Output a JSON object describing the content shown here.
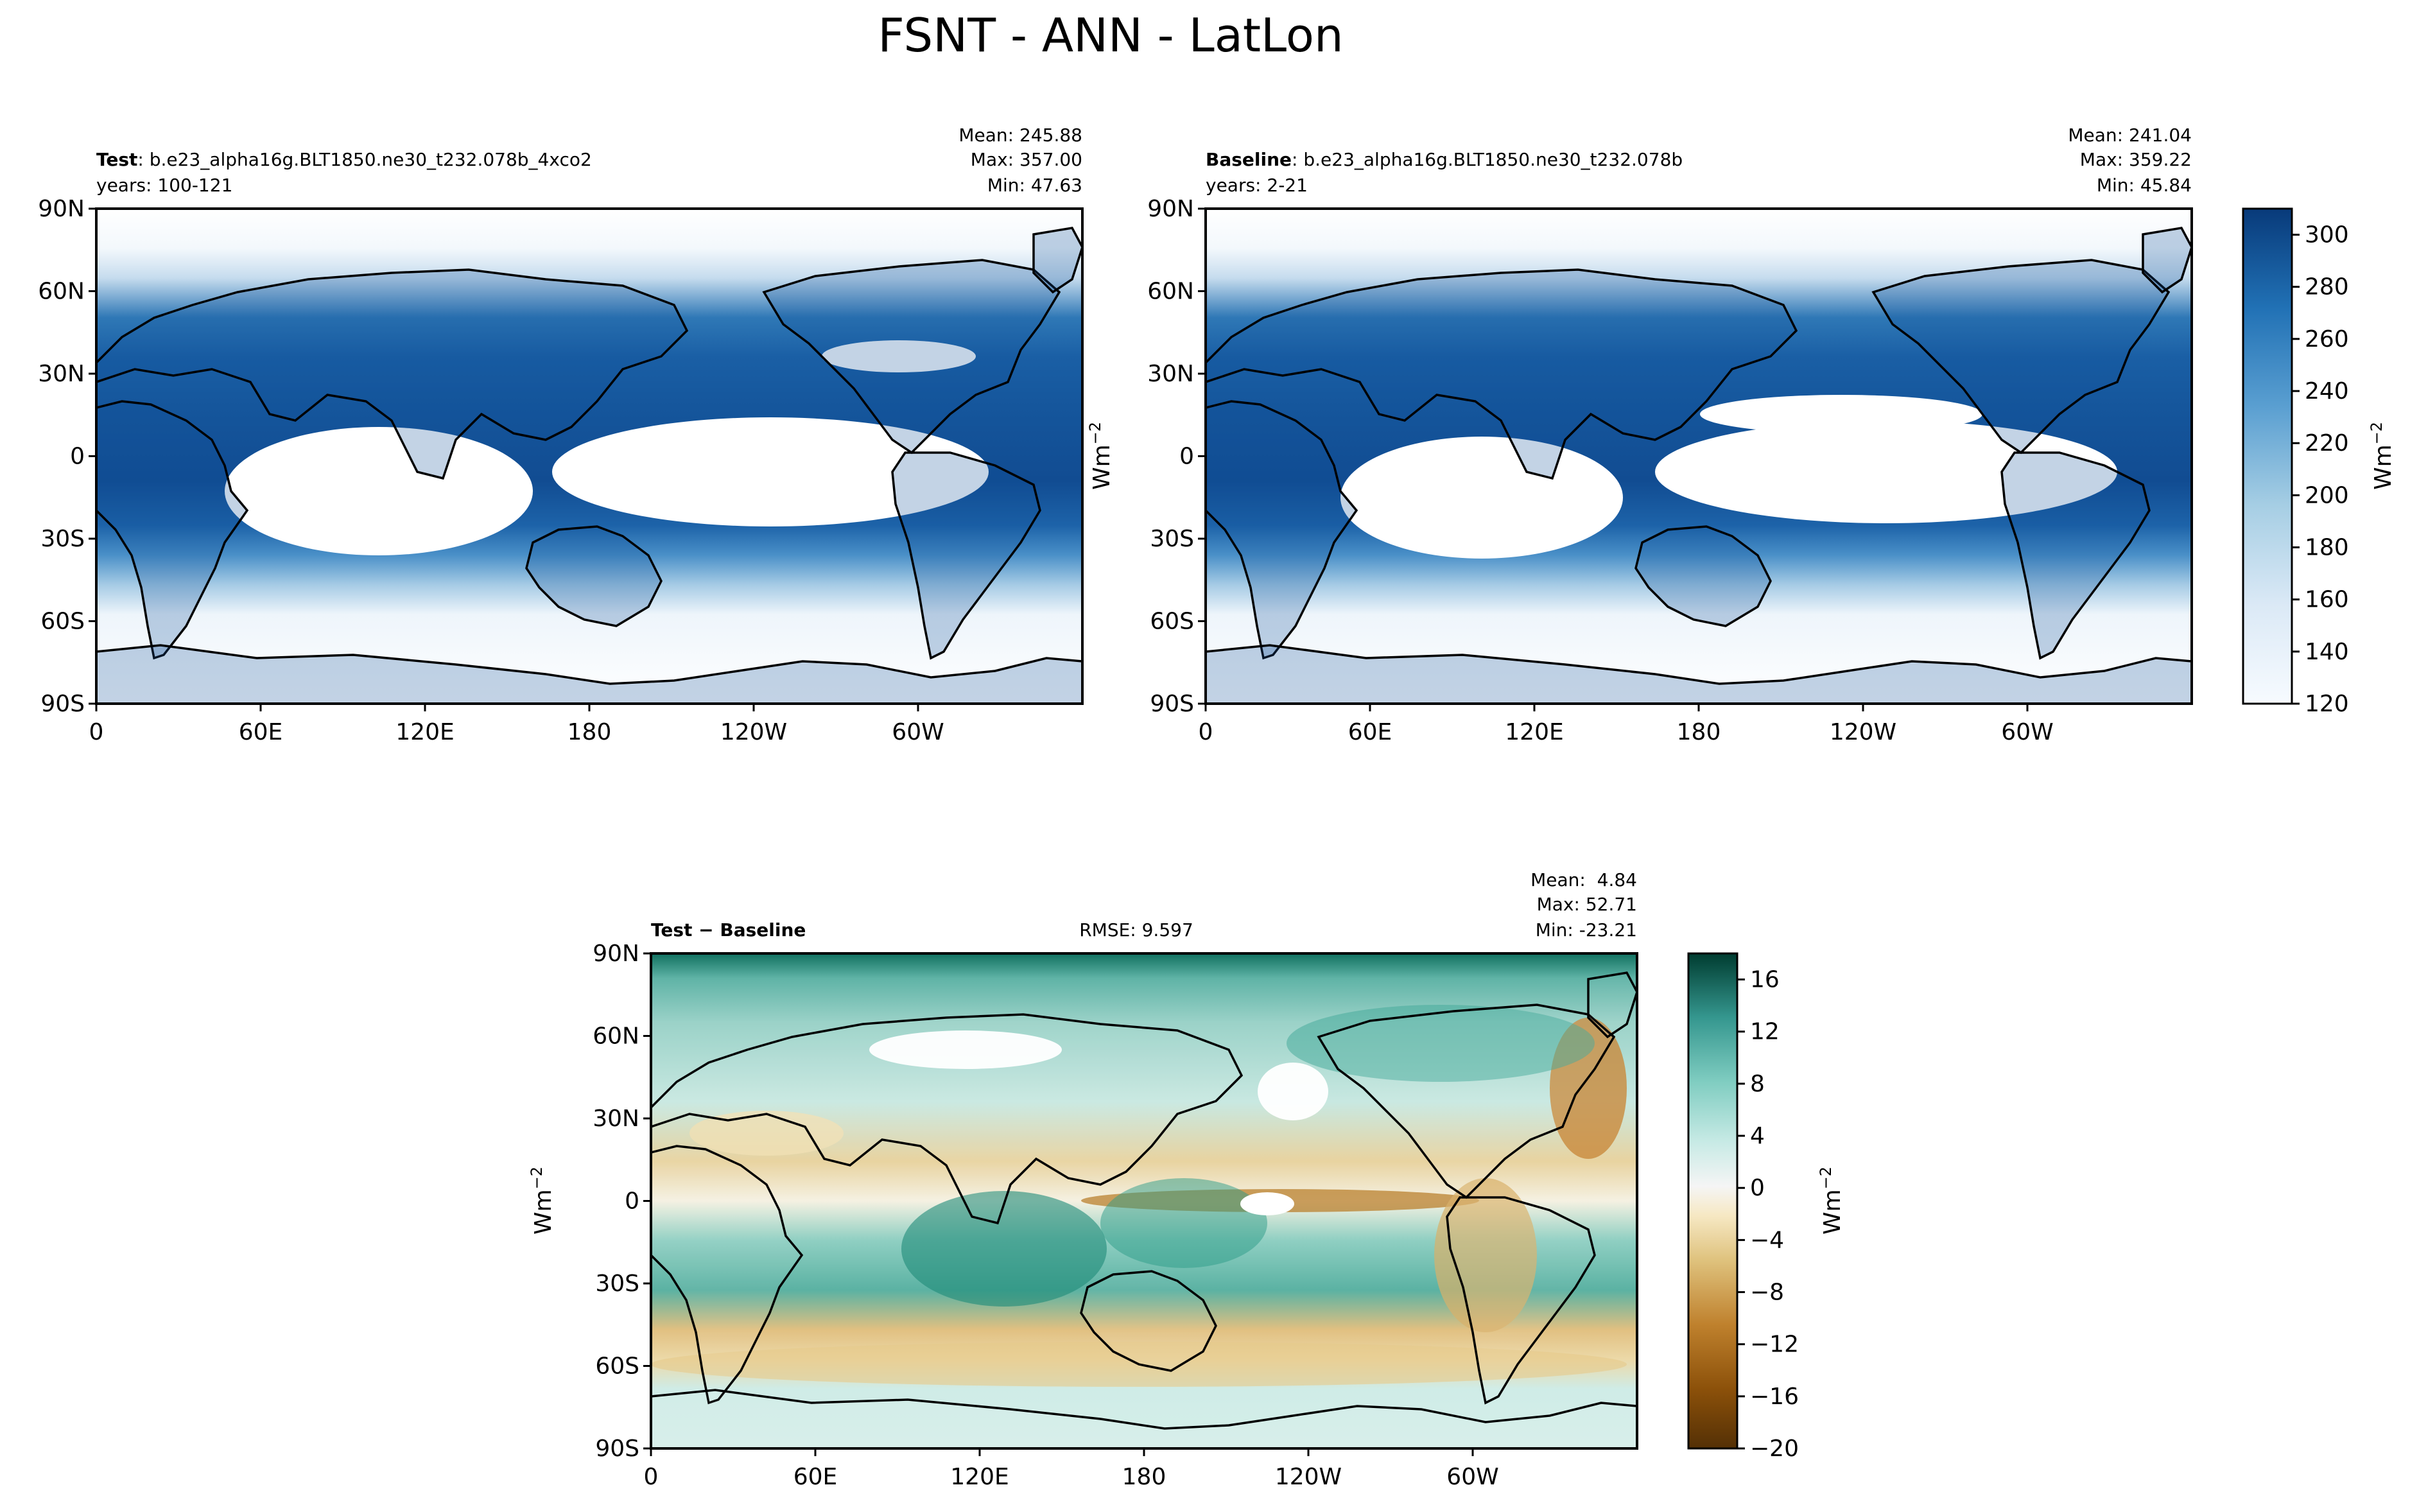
{
  "figure": {
    "title": "FSNT - ANN - LatLon"
  },
  "chart_data": [
    {
      "type": "heatmap",
      "panel": "test",
      "label_bold": "Test",
      "label_rest": ": b.e23_alpha16g.BLT1850.ne30_t232.078b_4xco2",
      "years": "years: 100-121",
      "stats": {
        "mean": "Mean: 245.88",
        "max": "Max: 357.00",
        "min": "Min: 47.63"
      },
      "x_ticks": [
        "0",
        "60E",
        "120E",
        "180",
        "120W",
        "60W"
      ],
      "y_ticks": [
        "90N",
        "60N",
        "30N",
        "0",
        "30S",
        "60S",
        "90S"
      ],
      "ylabel": "Wm",
      "ylabel_exp": "−2",
      "colormap": "Blues"
    },
    {
      "type": "heatmap",
      "panel": "baseline",
      "label_bold": "Baseline",
      "label_rest": ": b.e23_alpha16g.BLT1850.ne30_t232.078b",
      "years": "years: 2-21",
      "stats": {
        "mean": "Mean: 241.04",
        "max": "Max: 359.22",
        "min": "Min: 45.84"
      },
      "x_ticks": [
        "0",
        "60E",
        "120E",
        "180",
        "120W",
        "60W"
      ],
      "y_ticks": [
        "90N",
        "60N",
        "30N",
        "0",
        "30S",
        "60S",
        "90S"
      ],
      "colormap": "Blues",
      "colorbar": {
        "ticks": [
          "120",
          "140",
          "160",
          "180",
          "200",
          "220",
          "240",
          "260",
          "280",
          "300"
        ],
        "range": [
          120,
          310
        ],
        "label": "Wm",
        "label_exp": "−2"
      }
    },
    {
      "type": "heatmap",
      "panel": "difference",
      "label_bold": "Test − Baseline",
      "rmse": "RMSE: 9.597",
      "stats": {
        "mean": "Mean:  4.84",
        "max": "Max: 52.71",
        "min": "Min: -23.21"
      },
      "x_ticks": [
        "0",
        "60E",
        "120E",
        "180",
        "120W",
        "60W"
      ],
      "y_ticks": [
        "90N",
        "60N",
        "30N",
        "0",
        "30S",
        "60S",
        "90S"
      ],
      "ylabel": "Wm",
      "ylabel_exp": "−2",
      "colormap": "BrBG",
      "colorbar": {
        "ticks": [
          "16",
          "12",
          "8",
          "4",
          "0",
          "−4",
          "−8",
          "−12",
          "−16",
          "−20"
        ],
        "range": [
          -20,
          18
        ],
        "label": "Wm",
        "label_exp": "−2"
      }
    }
  ]
}
